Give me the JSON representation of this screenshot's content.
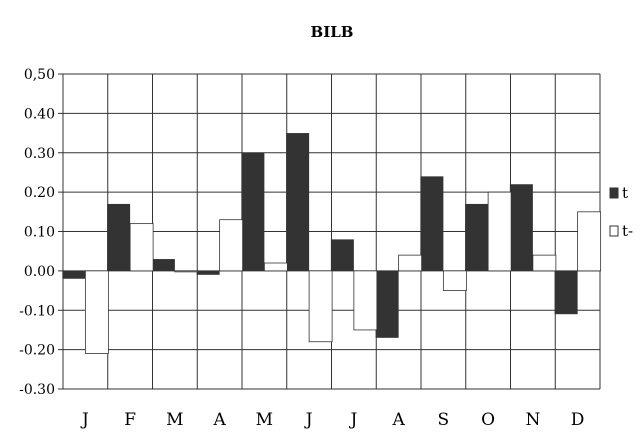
{
  "chart_data": {
    "type": "bar",
    "title": "BILB",
    "categories": [
      "J",
      "F",
      "M",
      "A",
      "M",
      "J",
      "J",
      "A",
      "S",
      "O",
      "N",
      "D"
    ],
    "series": [
      {
        "name": "t",
        "color": "#333333",
        "values": [
          -0.02,
          0.17,
          0.03,
          -0.01,
          0.3,
          0.35,
          0.08,
          -0.17,
          0.24,
          0.17,
          0.22,
          -0.11
        ]
      },
      {
        "name": "t-",
        "color": "#ffffff",
        "values": [
          -0.21,
          0.12,
          0.0,
          0.13,
          0.02,
          -0.18,
          -0.15,
          0.04,
          -0.05,
          0.2,
          0.04,
          0.15
        ]
      }
    ],
    "ylim": [
      -0.3,
      0.5
    ],
    "y_ticks": [
      "0,50",
      "0.40",
      "0.30",
      "0.20",
      "0.10",
      "0.00",
      "-0.10",
      "-0.20",
      "-0.30"
    ],
    "grid": true,
    "legend_position": "right"
  }
}
